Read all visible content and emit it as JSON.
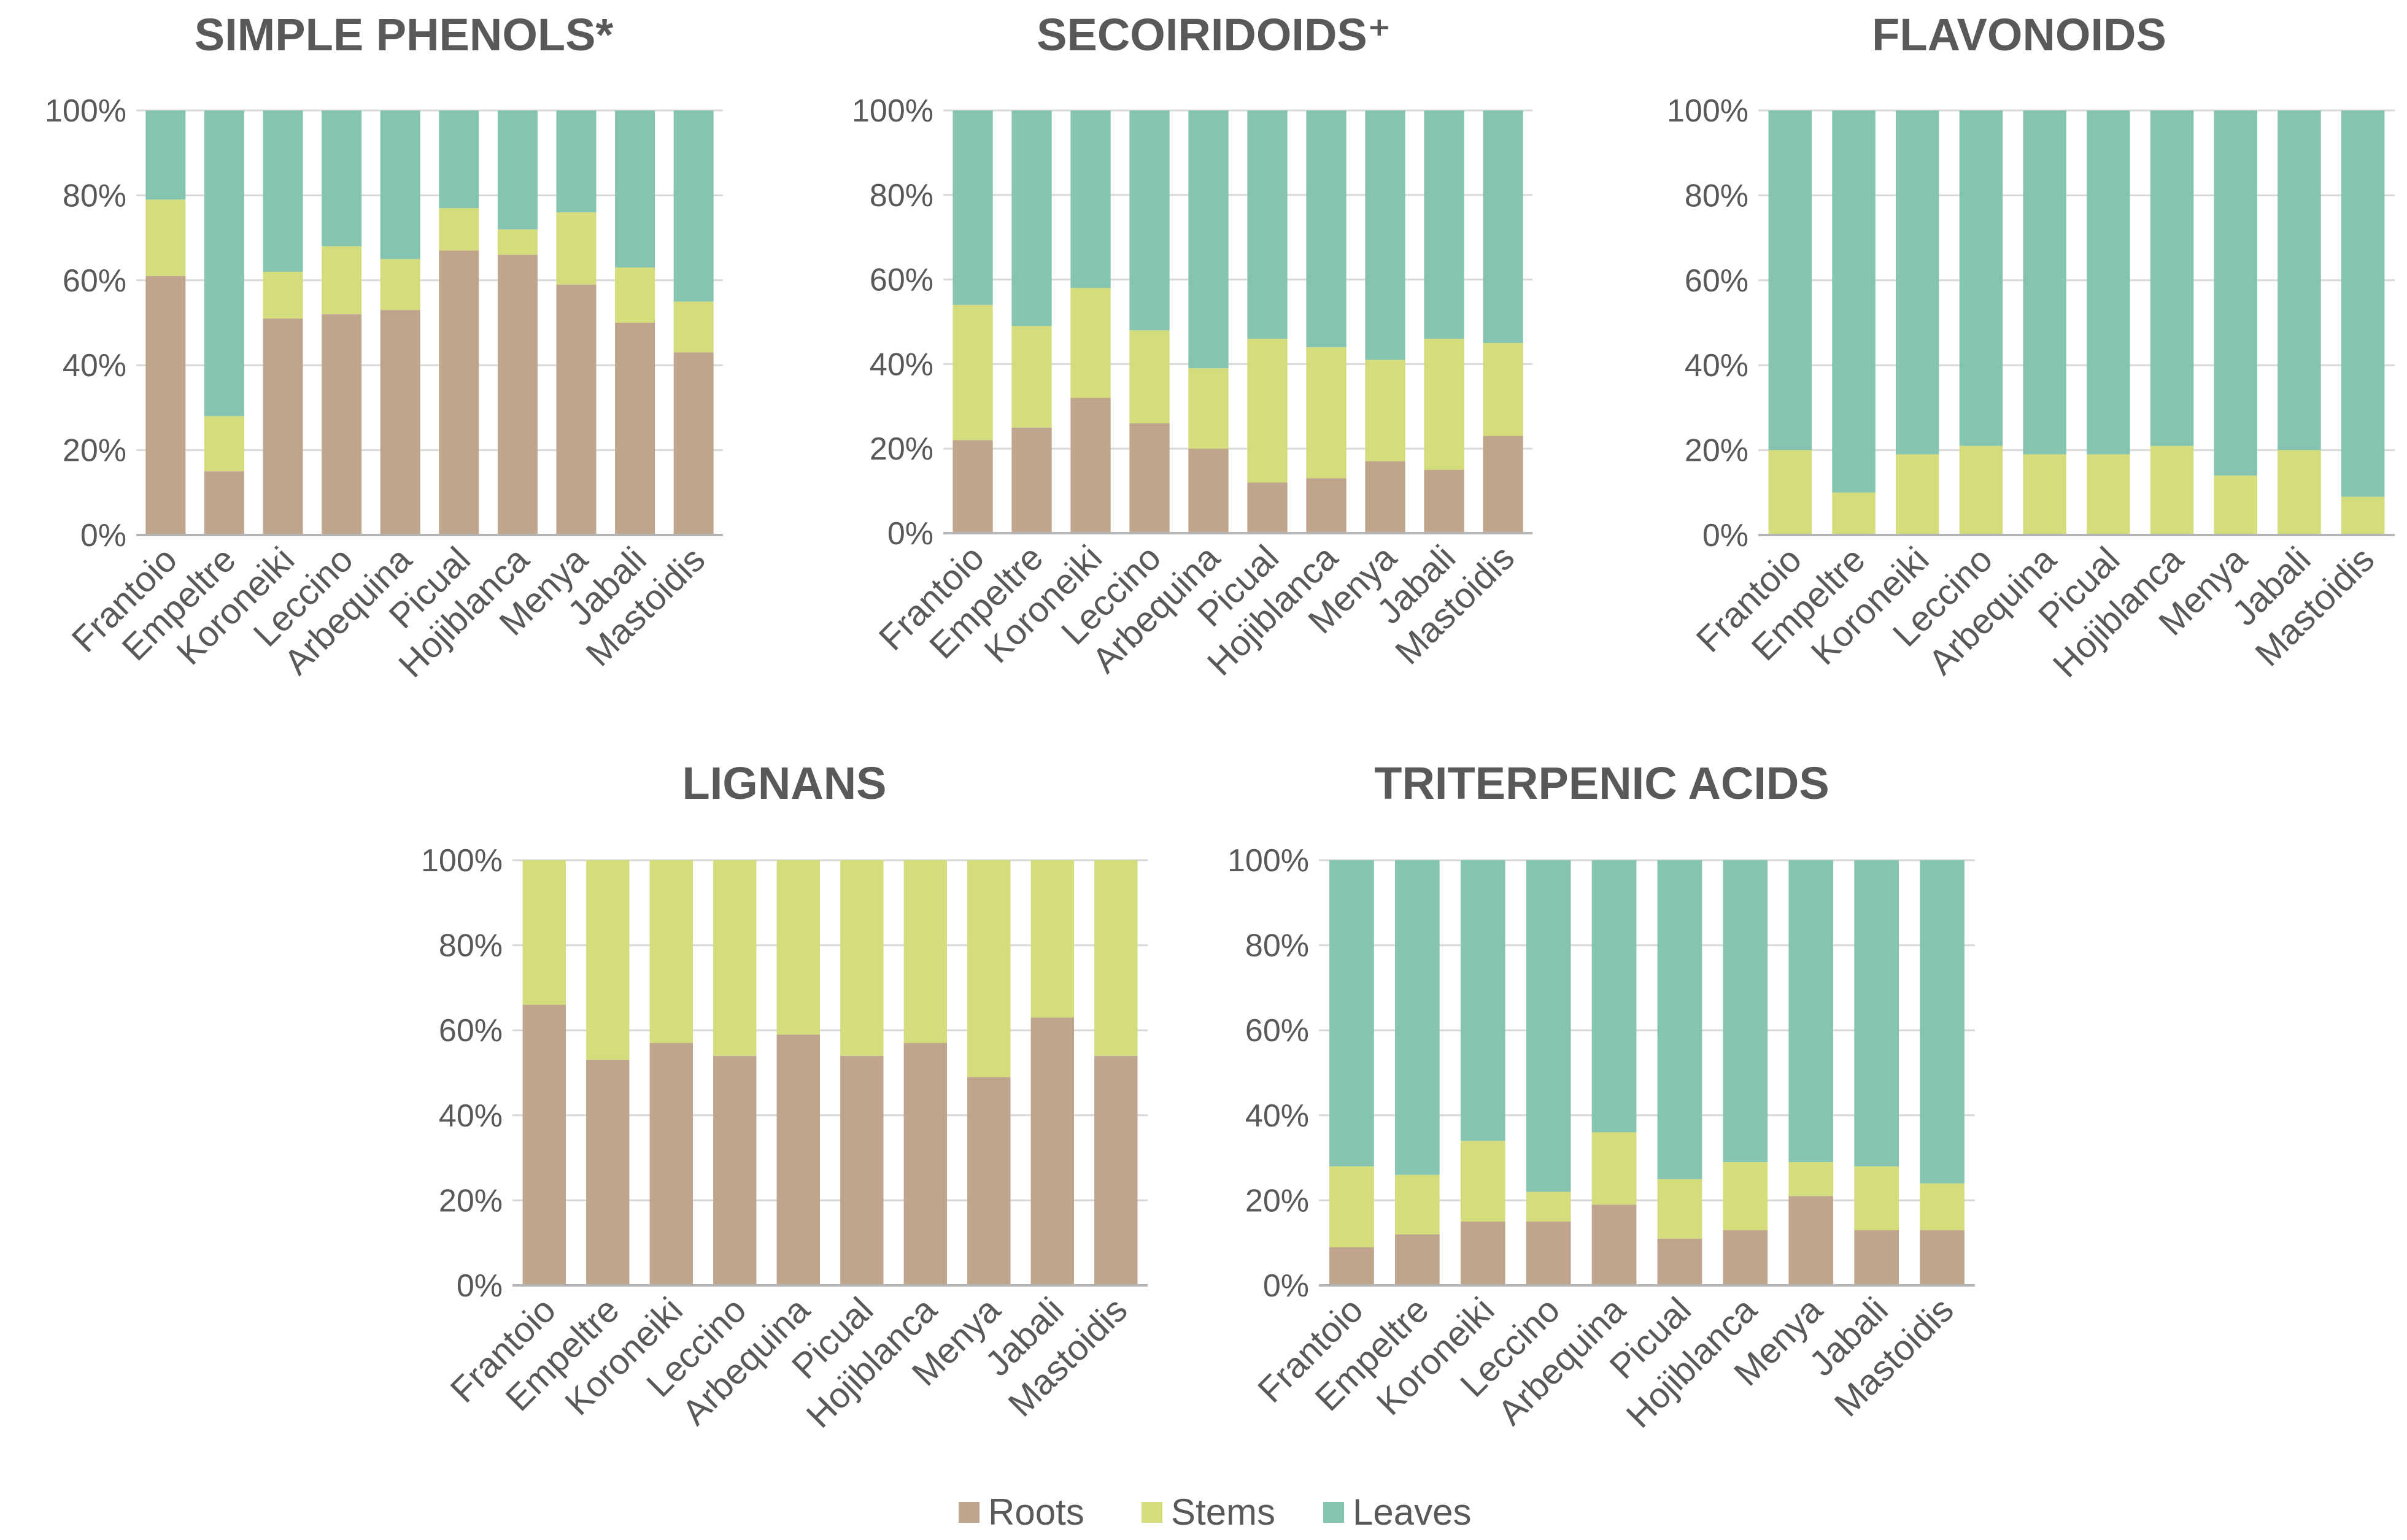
{
  "colors": {
    "roots": "#bfa58c",
    "stems": "#d4dc7c",
    "leaves": "#86c4b2",
    "axis": "#b5b5b5",
    "grid": "#d9d9d9",
    "text": "#595959"
  },
  "legend": {
    "roots": "Roots",
    "stems": "Stems",
    "leaves": "Leaves"
  },
  "chart_data": [
    {
      "type": "bar",
      "stacked": true,
      "title": "SIMPLE PHENOLS*",
      "categories": [
        "Frantoio",
        "Empeltre",
        "Koroneiki",
        "Leccino",
        "Arbequina",
        "Picual",
        "Hojiblanca",
        "Menya",
        "Jabali",
        "Mastoidis"
      ],
      "yticks": [
        "0%",
        "20%",
        "40%",
        "60%",
        "80%",
        "100%"
      ],
      "ylim": [
        0,
        100
      ],
      "series": [
        {
          "name": "Roots",
          "values": [
            61,
            15,
            51,
            52,
            53,
            67,
            66,
            59,
            50,
            43
          ]
        },
        {
          "name": "Stems",
          "values": [
            18,
            13,
            11,
            16,
            12,
            10,
            6,
            17,
            13,
            12
          ]
        },
        {
          "name": "Leaves",
          "values": [
            21,
            72,
            38,
            32,
            35,
            23,
            28,
            24,
            37,
            45
          ]
        }
      ]
    },
    {
      "type": "bar",
      "stacked": true,
      "title": "SECOIRIDOIDS⁺",
      "categories": [
        "Frantoio",
        "Empeltre",
        "Koroneiki",
        "Leccino",
        "Arbequina",
        "Picual",
        "Hojiblanca",
        "Menya",
        "Jabali",
        "Mastoidis"
      ],
      "yticks": [
        "0%",
        "20%",
        "40%",
        "60%",
        "80%",
        "100%"
      ],
      "ylim": [
        0,
        100
      ],
      "series": [
        {
          "name": "Roots",
          "values": [
            22,
            25,
            32,
            26,
            20,
            12,
            13,
            17,
            15,
            23
          ]
        },
        {
          "name": "Stems",
          "values": [
            32,
            24,
            26,
            22,
            19,
            34,
            31,
            24,
            31,
            22
          ]
        },
        {
          "name": "Leaves",
          "values": [
            46,
            51,
            42,
            52,
            61,
            54,
            56,
            59,
            54,
            55
          ]
        }
      ]
    },
    {
      "type": "bar",
      "stacked": true,
      "title": "FLAVONOIDS",
      "categories": [
        "Frantoio",
        "Empeltre",
        "Koroneiki",
        "Leccino",
        "Arbequina",
        "Picual",
        "Hojiblanca",
        "Menya",
        "Jabali",
        "Mastoidis"
      ],
      "yticks": [
        "0%",
        "20%",
        "40%",
        "60%",
        "80%",
        "100%"
      ],
      "ylim": [
        0,
        100
      ],
      "series": [
        {
          "name": "Roots",
          "values": [
            0,
            0,
            0,
            0,
            0,
            0,
            0,
            0,
            0,
            0
          ]
        },
        {
          "name": "Stems",
          "values": [
            20,
            10,
            19,
            21,
            19,
            19,
            21,
            14,
            20,
            9
          ]
        },
        {
          "name": "Leaves",
          "values": [
            80,
            90,
            81,
            79,
            81,
            81,
            79,
            86,
            80,
            91
          ]
        }
      ]
    },
    {
      "type": "bar",
      "stacked": true,
      "title": "LIGNANS",
      "categories": [
        "Frantoio",
        "Empeltre",
        "Koroneiki",
        "Leccino",
        "Arbequina",
        "Picual",
        "Hojiblanca",
        "Menya",
        "Jabali",
        "Mastoidis"
      ],
      "yticks": [
        "0%",
        "20%",
        "40%",
        "60%",
        "80%",
        "100%"
      ],
      "ylim": [
        0,
        100
      ],
      "series": [
        {
          "name": "Roots",
          "values": [
            66,
            53,
            57,
            54,
            59,
            54,
            57,
            49,
            63,
            54
          ]
        },
        {
          "name": "Stems",
          "values": [
            34,
            47,
            43,
            46,
            41,
            46,
            43,
            51,
            37,
            46
          ]
        },
        {
          "name": "Leaves",
          "values": [
            0,
            0,
            0,
            0,
            0,
            0,
            0,
            0,
            0,
            0
          ]
        }
      ]
    },
    {
      "type": "bar",
      "stacked": true,
      "title": "TRITERPENIC ACIDS",
      "categories": [
        "Frantoio",
        "Empeltre",
        "Koroneiki",
        "Leccino",
        "Arbequina",
        "Picual",
        "Hojiblanca",
        "Menya",
        "Jabali",
        "Mastoidis"
      ],
      "yticks": [
        "0%",
        "20%",
        "40%",
        "60%",
        "80%",
        "100%"
      ],
      "ylim": [
        0,
        100
      ],
      "series": [
        {
          "name": "Roots",
          "values": [
            9,
            12,
            15,
            15,
            19,
            11,
            13,
            21,
            13,
            13
          ]
        },
        {
          "name": "Stems",
          "values": [
            19,
            14,
            19,
            7,
            17,
            14,
            16,
            8,
            15,
            11
          ]
        },
        {
          "name": "Leaves",
          "values": [
            72,
            74,
            66,
            78,
            64,
            75,
            71,
            71,
            72,
            76
          ]
        }
      ]
    }
  ]
}
